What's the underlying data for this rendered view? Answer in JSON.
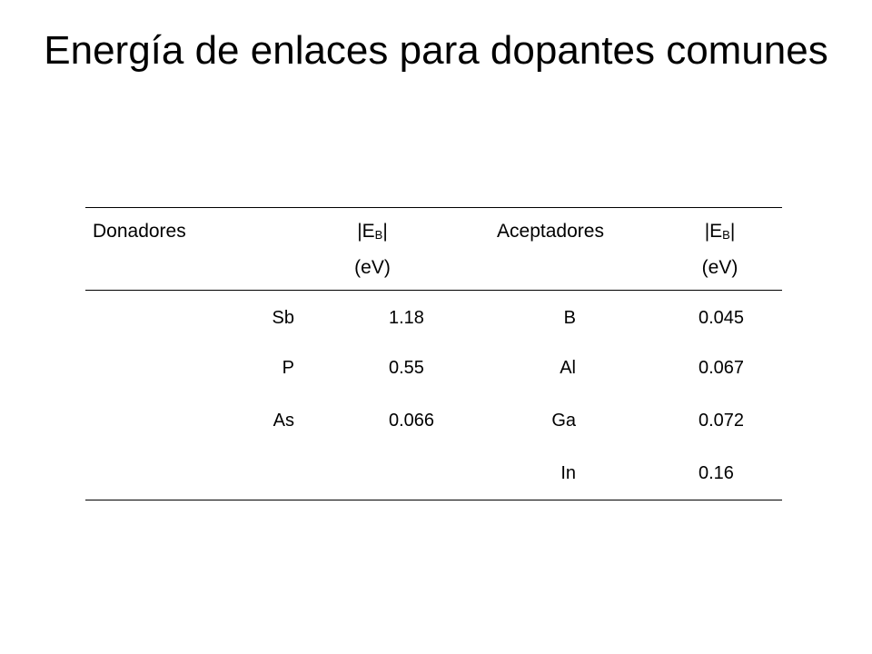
{
  "slide": {
    "title": "Energía de enlaces para dopantes comunes"
  },
  "table": {
    "headers": {
      "donors": "Donadores",
      "eb_prefix": "|E",
      "eb_sub": "B",
      "eb_suffix": "|",
      "unit": "(eV)",
      "acceptors": "Aceptadores"
    },
    "rows": [
      {
        "donor": "Sb",
        "donor_eb": "1.18",
        "acceptor": "B",
        "acceptor_eb": "0.045"
      },
      {
        "donor": "P",
        "donor_eb": "0.55",
        "acceptor": "Al",
        "acceptor_eb": "0.067"
      },
      {
        "donor": "As",
        "donor_eb": "0.066",
        "acceptor": "Ga",
        "acceptor_eb": "0.072"
      },
      {
        "donor": "",
        "donor_eb": "",
        "acceptor": "In",
        "acceptor_eb": "0.16"
      }
    ]
  }
}
